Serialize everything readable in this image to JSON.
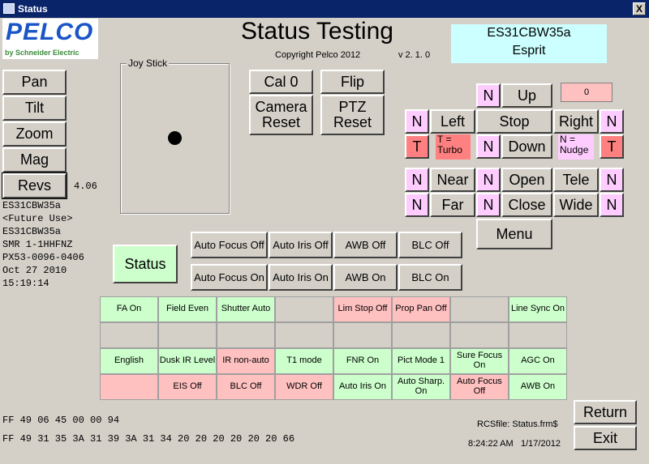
{
  "window": {
    "title": "Status",
    "close_glyph": "X"
  },
  "logo": {
    "brand": "PELCO",
    "sub": "by Schneider Electric"
  },
  "header": {
    "title": "Status Testing",
    "copyright": "Copyright Pelco 2012",
    "version": "v 2. 1. 0",
    "device_id": "ES31CBW35a",
    "device_name": "Esprit"
  },
  "mode_buttons": {
    "pan": "Pan",
    "tilt": "Tilt",
    "zoom": "Zoom",
    "mag": "Mag",
    "revs": "Revs",
    "revs_value": "4.06"
  },
  "info_lines": [
    "ES31CBW35a",
    "<Future Use>",
    "ES31CBW35a",
    "SMR 1-1HHFNZ",
    "PX53-0096-0406",
    "Oct 27 2010",
    "15:19:14"
  ],
  "joystick": {
    "label": "Joy Stick"
  },
  "cam_buttons": {
    "cal": "Cal 0",
    "flip": "Flip",
    "cam_reset_1": "Camera",
    "cam_reset_2": "Reset",
    "ptz_reset_1": "PTZ",
    "ptz_reset_2": "Reset"
  },
  "ptz": {
    "up": "Up",
    "left": "Left",
    "stop": "Stop",
    "right": "Right",
    "down": "Down",
    "near": "Near",
    "far": "Far",
    "open": "Open",
    "close": "Close",
    "tele": "Tele",
    "wide": "Wide",
    "menu": "Menu",
    "n": "N",
    "t": "T",
    "turbo_1": "T =",
    "turbo_2": "Turbo",
    "nudge_1": "N =",
    "nudge_2": "Nudge",
    "counter": "0"
  },
  "status_button": "Status",
  "focus_off": [
    "Auto Focus Off",
    "Auto Iris Off",
    "AWB Off",
    "BLC Off"
  ],
  "focus_on": [
    "Auto Focus On",
    "Auto Iris On",
    "AWB On",
    "BLC On"
  ],
  "grid": {
    "row1": [
      "FA On",
      "Field Even",
      "Shutter Auto",
      "",
      "Lim Stop Off",
      "Prop Pan Off",
      "",
      "Line Sync On"
    ],
    "row2": [
      "",
      "",
      "",
      "",
      "",
      "",
      "",
      ""
    ],
    "row3": [
      "English",
      "Dusk IR Level",
      "IR non-auto",
      "T1 mode",
      "FNR On",
      "Pict Mode 1",
      "Sure Focus On",
      "AGC On"
    ],
    "row4": [
      "",
      "EIS Off",
      "BLC Off",
      "WDR Off",
      "Auto Iris On",
      "Auto Sharp. On",
      "Auto Focus Off",
      "AWB On"
    ]
  },
  "hex": {
    "line1": "FF 49 06 45 00 00 94",
    "line2": "FF 49 31 35 3A 31 39 3A 31 34 20 20 20 20 20 20 66"
  },
  "footer": {
    "rcsfile": "RCSfile: Status.frm$",
    "time": "8:24:22 AM",
    "date": "1/17/2012",
    "return": "Return",
    "exit": "Exit"
  },
  "colors": {
    "green": "#ccffcc",
    "red": "#ffc0c0",
    "pink": "#ffccff",
    "cyan": "#ccffff",
    "title_bar": "#0a246a"
  }
}
